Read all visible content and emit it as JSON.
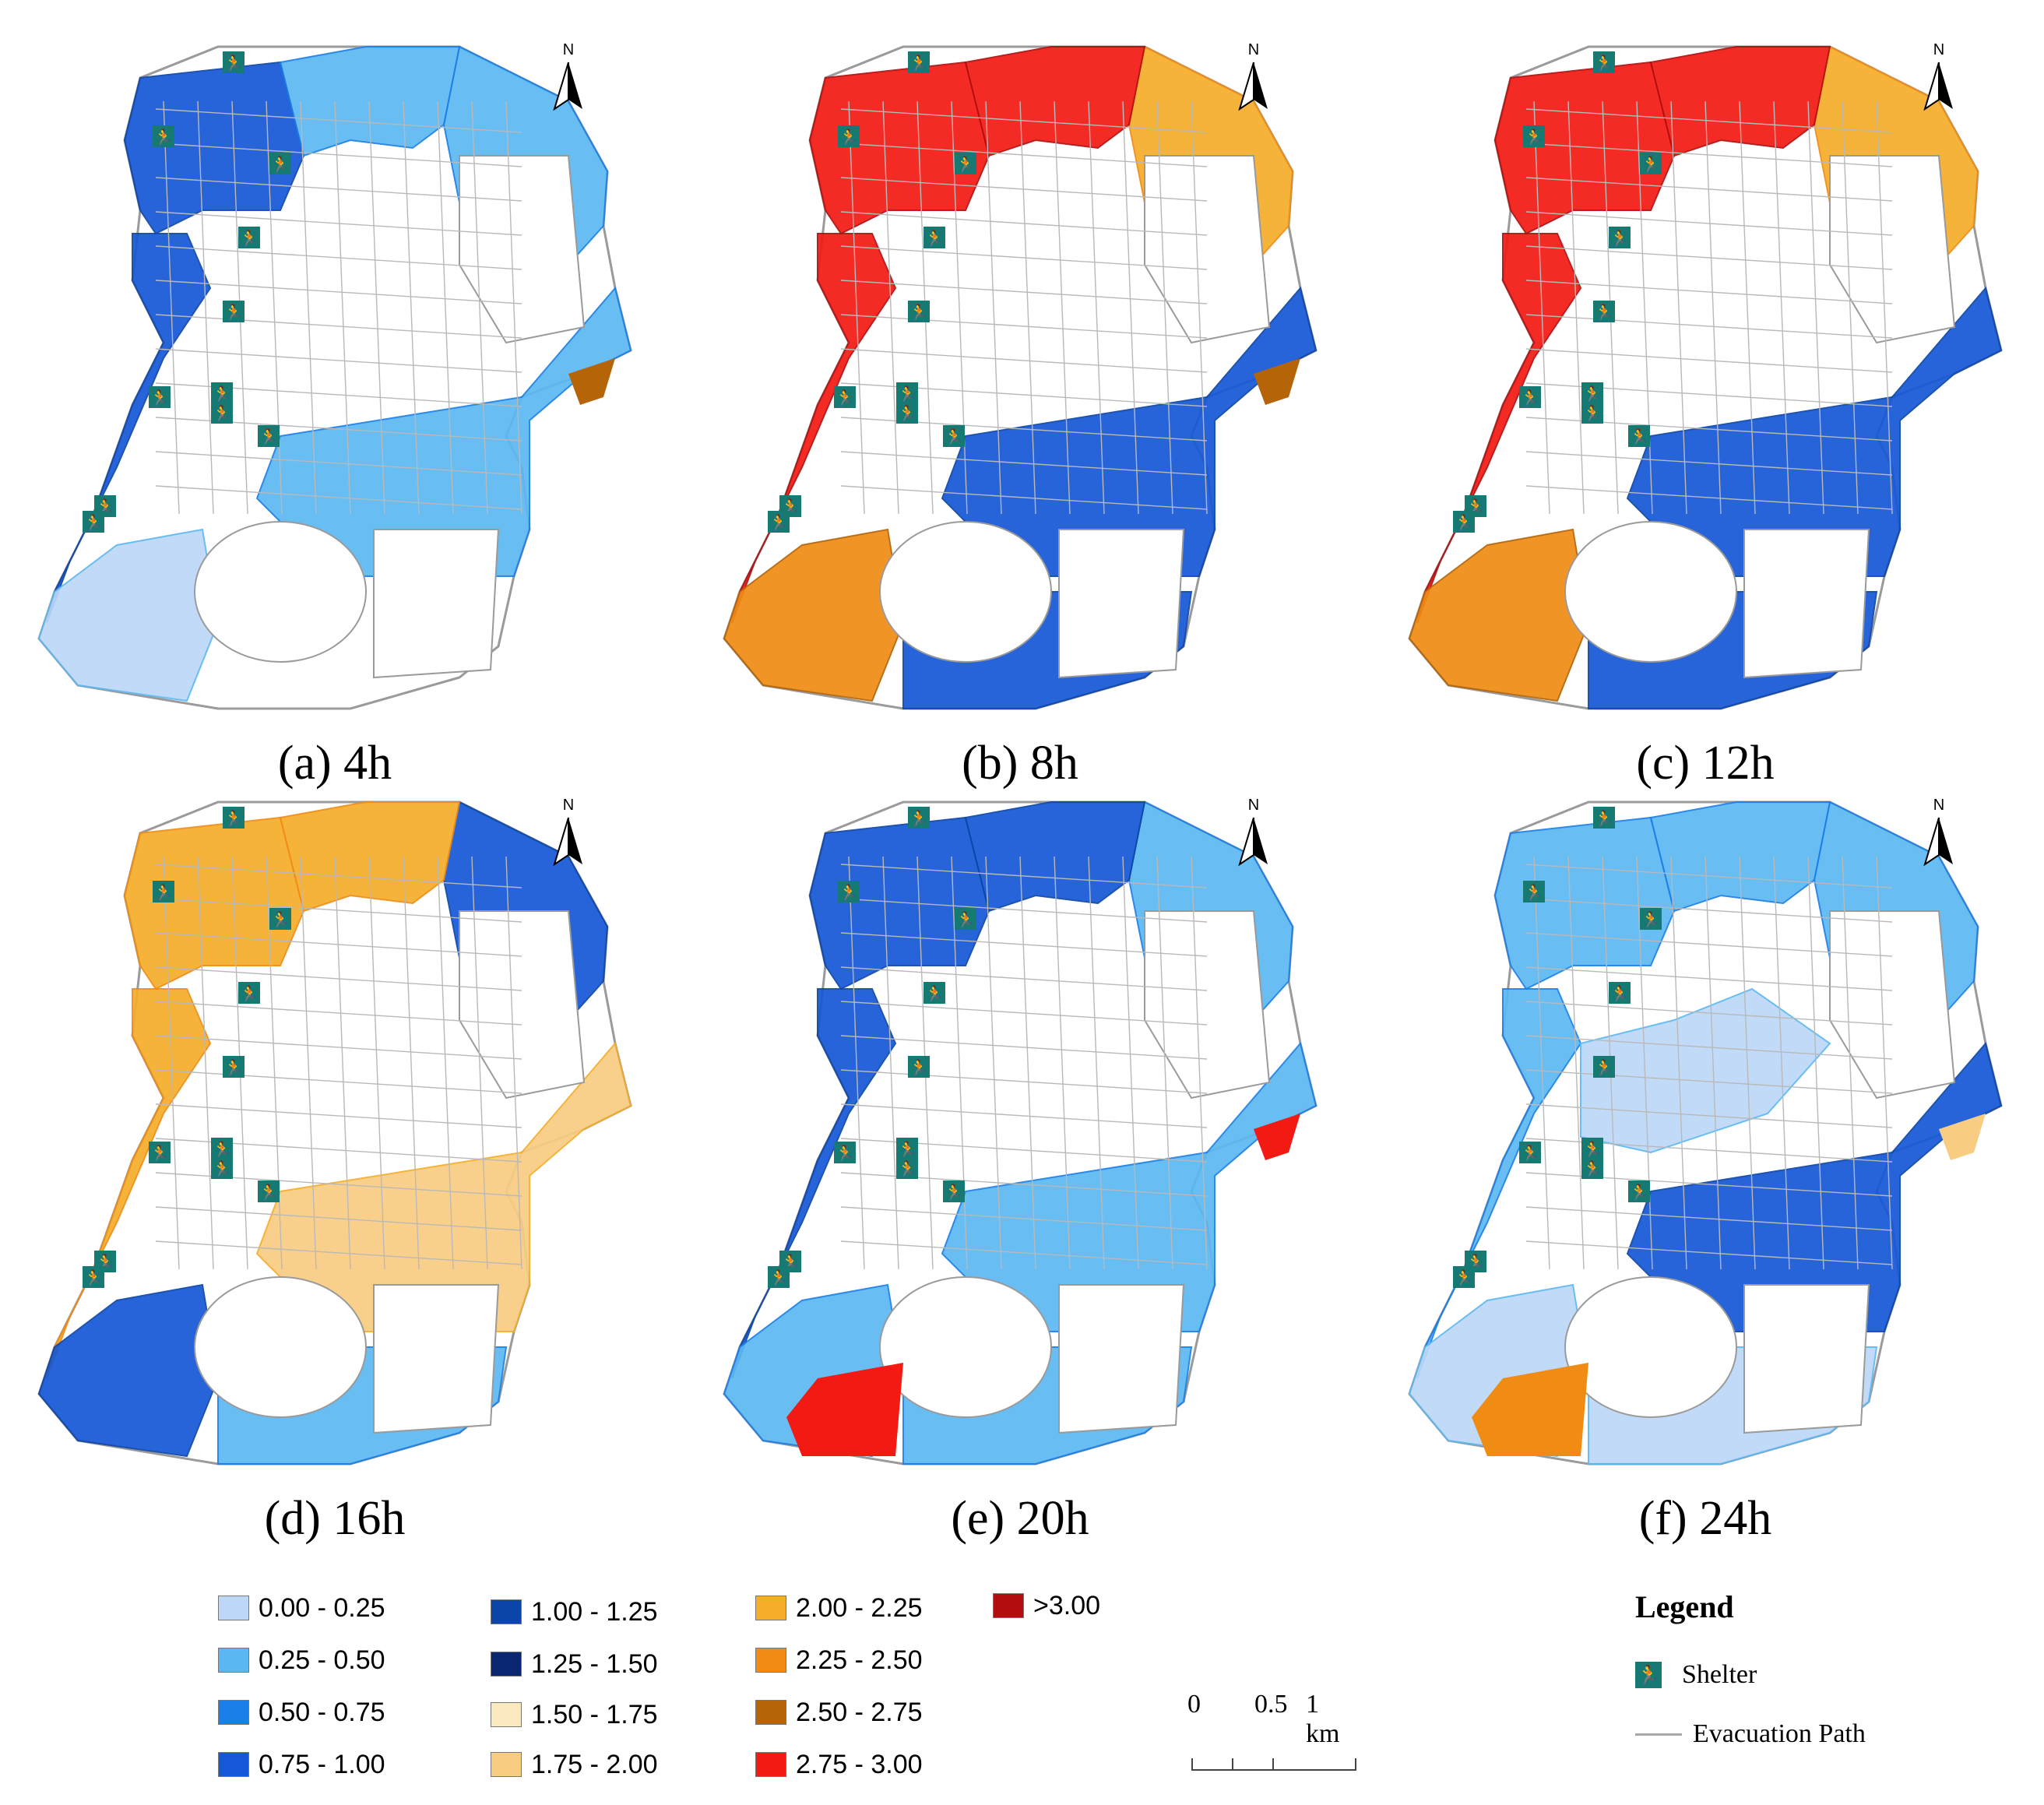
{
  "panels": [
    {
      "id": "a",
      "label": "(a) 4h"
    },
    {
      "id": "b",
      "label": "(b) 8h"
    },
    {
      "id": "c",
      "label": "(c) 12h"
    },
    {
      "id": "d",
      "label": "(d) 16h"
    },
    {
      "id": "e",
      "label": "(e) 20h"
    },
    {
      "id": "f",
      "label": "(f) 24h"
    }
  ],
  "north_label": "N",
  "classes": [
    {
      "label": "0.00 - 0.25",
      "color": "#bcd7f7"
    },
    {
      "label": "0.25 - 0.50",
      "color": "#5cb8f2"
    },
    {
      "label": "0.50 - 0.75",
      "color": "#1a7fe8"
    },
    {
      "label": "0.75 - 1.00",
      "color": "#1557d6"
    },
    {
      "label": "1.00 - 1.25",
      "color": "#0b45a8"
    },
    {
      "label": "1.25 - 1.50",
      "color": "#0a2670"
    },
    {
      "label": "1.50 - 1.75",
      "color": "#fbeac0"
    },
    {
      "label": "1.75 - 2.00",
      "color": "#f8cd82"
    },
    {
      "label": "2.00 - 2.25",
      "color": "#f5ad2a"
    },
    {
      "label": "2.25 - 2.50",
      "color": "#f08c14"
    },
    {
      "label": "2.50 - 2.75",
      "color": "#b56408"
    },
    {
      "label": "2.75 - 3.00",
      "color": "#f21a12"
    },
    {
      "label": ">3.00",
      "color": "#b30d0d"
    }
  ],
  "scale": {
    "t0": "0",
    "t1": "0.5",
    "t2": "1 km"
  },
  "legend": {
    "title": "Legend",
    "shelter": "Shelter",
    "path": "Evacuation Path",
    "shelter_icon": "running-person-icon"
  },
  "shelter_color": "#177a72",
  "path_color": "#a8a8a8"
}
